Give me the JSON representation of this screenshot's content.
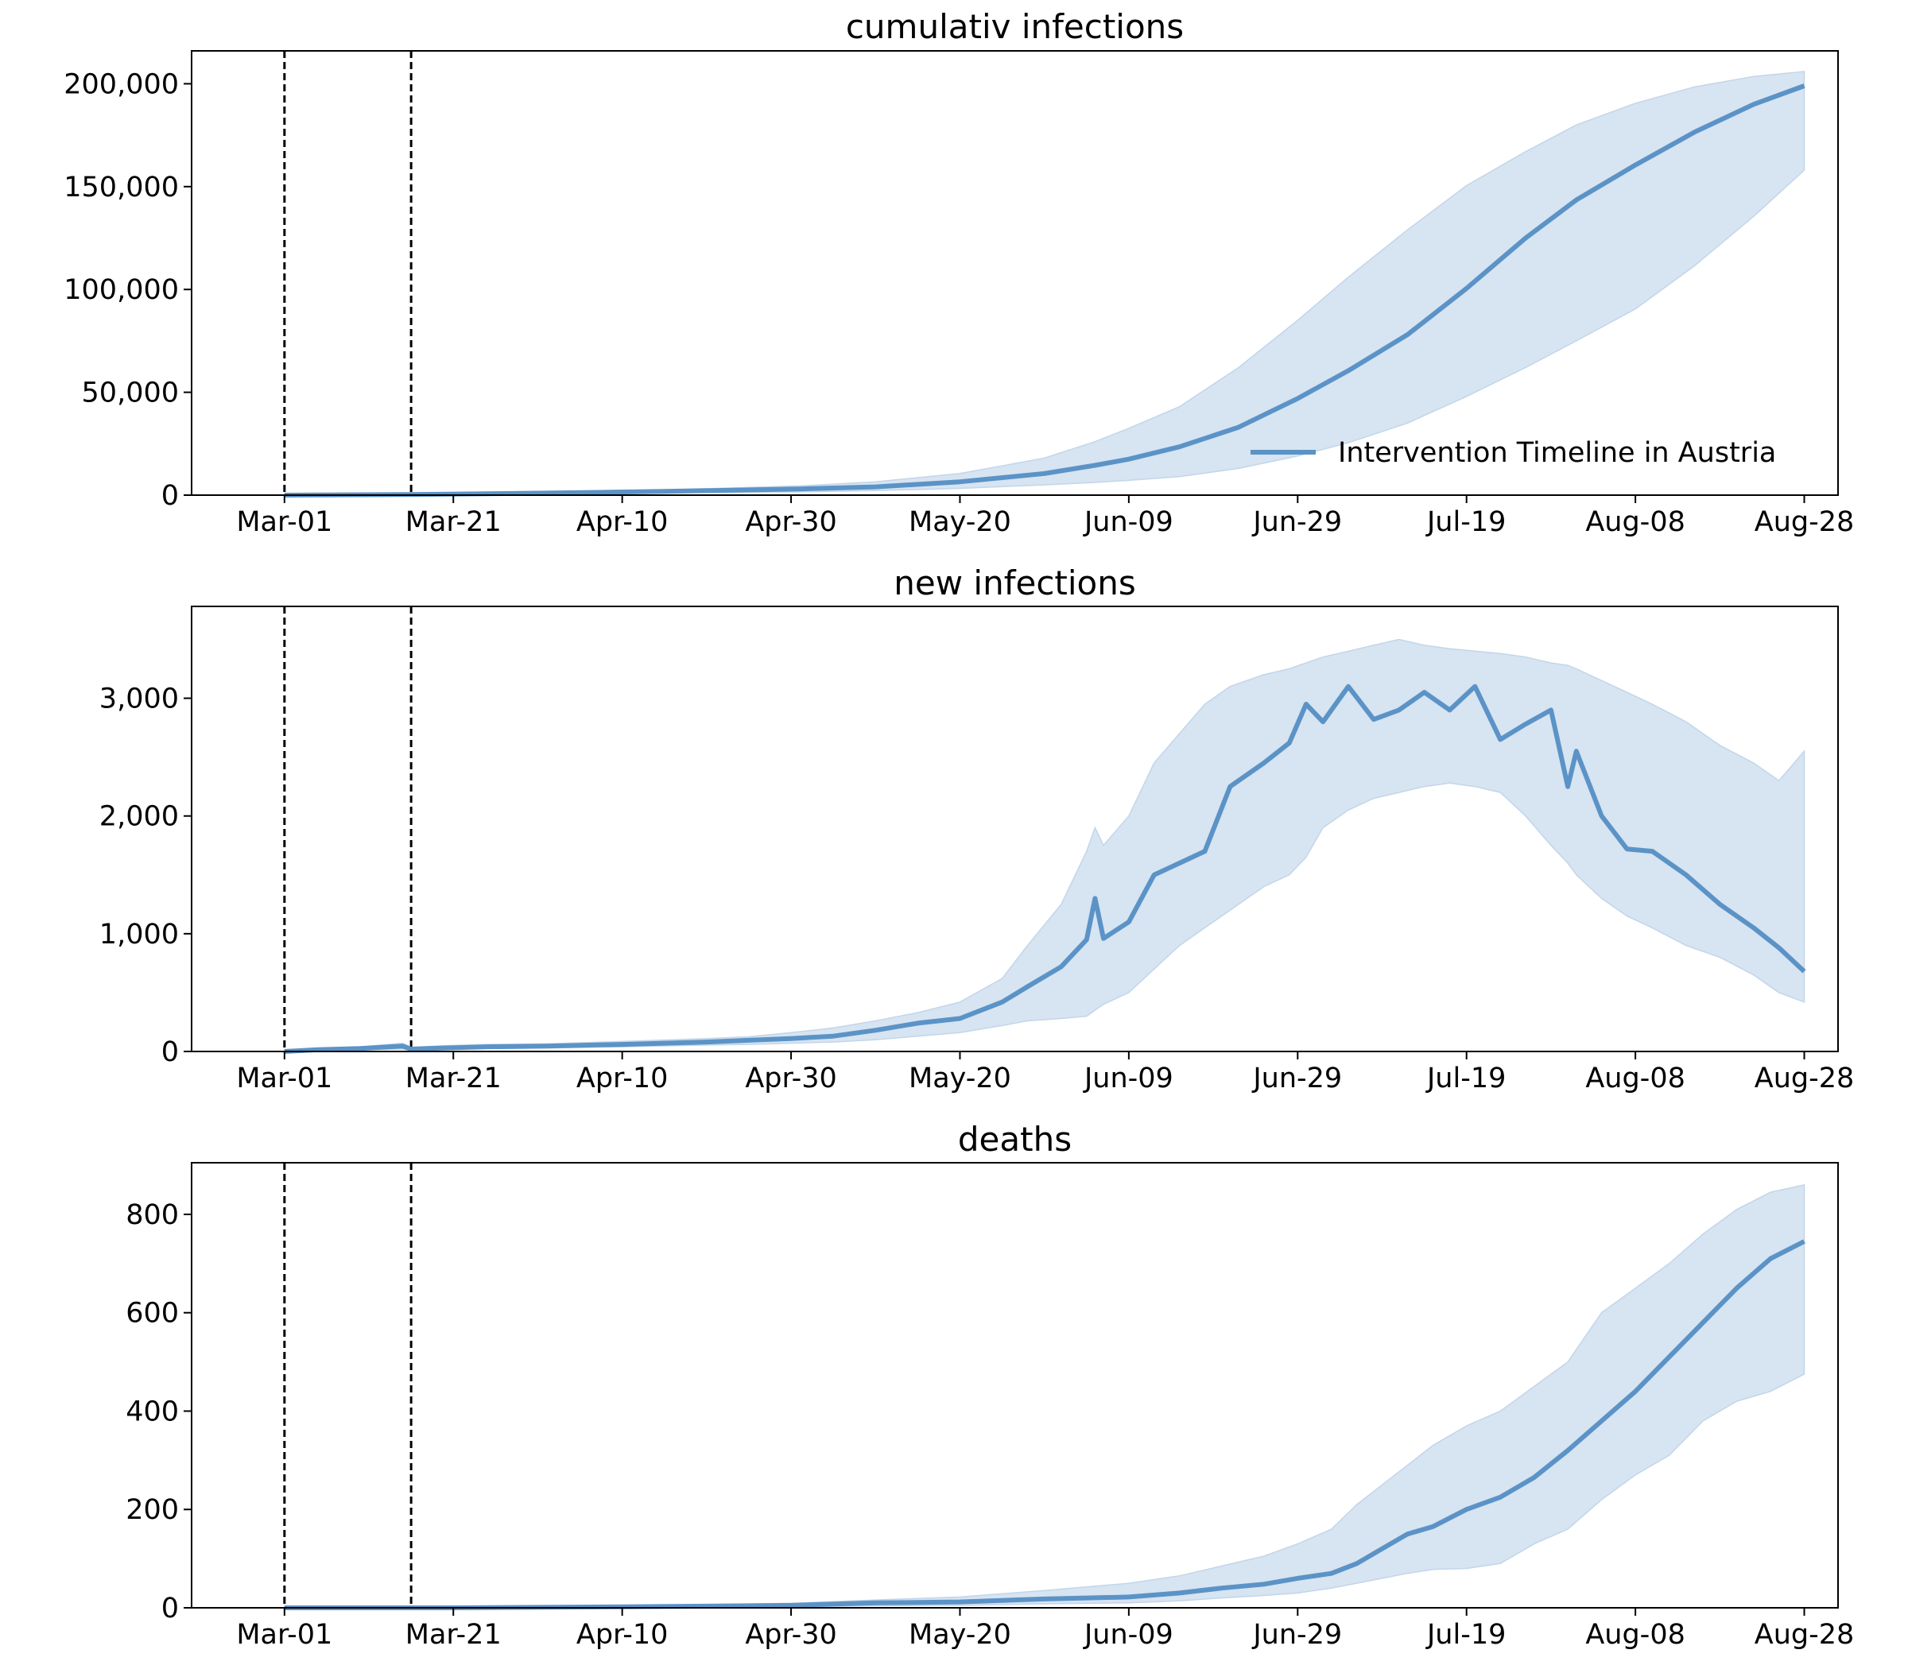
{
  "colors": {
    "line": "#5b93c7",
    "band": "#c2d6ea",
    "intervention": "#000000"
  },
  "chart_data": [
    {
      "type": "line",
      "title": "cumulativ infections",
      "xlabel": "",
      "ylabel": "",
      "xlim": [
        "2020-02-19",
        "2020-09-01"
      ],
      "ylim": [
        0,
        216000
      ],
      "grid": false,
      "y_ticks": [
        0,
        50000,
        100000,
        150000,
        200000
      ],
      "y_tick_labels": [
        "0",
        "50,000",
        "100,000",
        "150,000",
        "200,000"
      ],
      "x_ticks": [
        "2020-03-01",
        "2020-03-21",
        "2020-04-10",
        "2020-04-30",
        "2020-05-20",
        "2020-06-09",
        "2020-06-29",
        "2020-07-19",
        "2020-08-08",
        "2020-08-28"
      ],
      "x_tick_labels": [
        "Mar-01",
        "Mar-21",
        "Apr-10",
        "Apr-30",
        "May-20",
        "Jun-09",
        "Jun-29",
        "Jul-19",
        "Aug-08",
        "Aug-28"
      ],
      "intervention_dates": [
        "2020-03-01",
        "2020-03-16"
      ],
      "legend": {
        "entries": [
          "Intervention Timeline in Austria"
        ],
        "placement": "lower right"
      },
      "series": [
        {
          "name": "Intervention Timeline in Austria",
          "x": [
            "2020-03-01",
            "2020-03-16",
            "2020-04-01",
            "2020-04-15",
            "2020-05-01",
            "2020-05-10",
            "2020-05-20",
            "2020-05-30",
            "2020-06-05",
            "2020-06-09",
            "2020-06-15",
            "2020-06-22",
            "2020-06-29",
            "2020-07-05",
            "2020-07-12",
            "2020-07-19",
            "2020-07-26",
            "2020-08-01",
            "2020-08-08",
            "2020-08-15",
            "2020-08-22",
            "2020-08-28"
          ],
          "y": [
            0,
            300,
            1000,
            1800,
            3000,
            4000,
            6500,
            10500,
            14500,
            17500,
            23500,
            33000,
            47000,
            60500,
            78000,
            100500,
            125000,
            143500,
            160500,
            176500,
            190000,
            199000
          ],
          "lower": [
            0,
            200,
            600,
            1100,
            1600,
            2200,
            3300,
            5000,
            6200,
            7200,
            9000,
            13000,
            19000,
            25500,
            35000,
            48000,
            62000,
            75000,
            90500,
            111500,
            135500,
            158000
          ],
          "upper": [
            0,
            400,
            1400,
            2500,
            4500,
            6500,
            10500,
            18000,
            26000,
            32500,
            43000,
            62000,
            85000,
            106000,
            129000,
            150500,
            167000,
            180000,
            190500,
            198500,
            203500,
            206000
          ]
        }
      ]
    },
    {
      "type": "line",
      "title": "new infections",
      "xlabel": "",
      "ylabel": "",
      "xlim": [
        "2020-02-19",
        "2020-09-01"
      ],
      "ylim": [
        0,
        3780
      ],
      "grid": false,
      "y_ticks": [
        0,
        1000,
        2000,
        3000
      ],
      "y_tick_labels": [
        "0",
        "1,000",
        "2,000",
        "3,000"
      ],
      "x_ticks": [
        "2020-03-01",
        "2020-03-21",
        "2020-04-10",
        "2020-04-30",
        "2020-05-20",
        "2020-06-09",
        "2020-06-29",
        "2020-07-19",
        "2020-08-08",
        "2020-08-28"
      ],
      "x_tick_labels": [
        "Mar-01",
        "Mar-21",
        "Apr-10",
        "Apr-30",
        "May-20",
        "Jun-09",
        "Jun-29",
        "Jul-19",
        "Aug-08",
        "Aug-28"
      ],
      "intervention_dates": [
        "2020-03-01",
        "2020-03-16"
      ],
      "series": [
        {
          "x": [
            "2020-03-01",
            "2020-03-05",
            "2020-03-10",
            "2020-03-15",
            "2020-03-16",
            "2020-03-20",
            "2020-03-25",
            "2020-04-01",
            "2020-04-10",
            "2020-04-20",
            "2020-04-25",
            "2020-04-30",
            "2020-05-05",
            "2020-05-10",
            "2020-05-15",
            "2020-05-20",
            "2020-05-25",
            "2020-05-28",
            "2020-06-01",
            "2020-06-04",
            "2020-06-05",
            "2020-06-06",
            "2020-06-09",
            "2020-06-12",
            "2020-06-15",
            "2020-06-18",
            "2020-06-21",
            "2020-06-25",
            "2020-06-28",
            "2020-06-30",
            "2020-07-02",
            "2020-07-05",
            "2020-07-08",
            "2020-07-11",
            "2020-07-14",
            "2020-07-17",
            "2020-07-20",
            "2020-07-23",
            "2020-07-26",
            "2020-07-29",
            "2020-07-31",
            "2020-08-01",
            "2020-08-04",
            "2020-08-07",
            "2020-08-10",
            "2020-08-14",
            "2020-08-18",
            "2020-08-22",
            "2020-08-25",
            "2020-08-28"
          ],
          "y": [
            0,
            15,
            25,
            45,
            20,
            30,
            40,
            45,
            60,
            80,
            95,
            110,
            130,
            180,
            240,
            280,
            420,
            550,
            720,
            950,
            1300,
            960,
            1100,
            1500,
            1600,
            1700,
            2250,
            2450,
            2620,
            2950,
            2800,
            3100,
            2820,
            2900,
            3050,
            2900,
            3100,
            2650,
            2780,
            2900,
            2250,
            2550,
            2000,
            1720,
            1700,
            1500,
            1250,
            1050,
            880,
            680
          ],
          "lower": [
            0,
            10,
            15,
            20,
            10,
            20,
            25,
            30,
            40,
            55,
            60,
            70,
            80,
            100,
            130,
            160,
            220,
            260,
            280,
            300,
            350,
            400,
            500,
            700,
            900,
            1050,
            1200,
            1400,
            1500,
            1650,
            1900,
            2050,
            2150,
            2200,
            2250,
            2280,
            2250,
            2200,
            2000,
            1750,
            1600,
            1500,
            1300,
            1150,
            1050,
            900,
            800,
            650,
            500,
            420
          ],
          "upper": [
            0,
            25,
            40,
            70,
            35,
            50,
            60,
            65,
            85,
            110,
            125,
            160,
            200,
            260,
            330,
            420,
            620,
            900,
            1250,
            1700,
            1900,
            1750,
            2000,
            2450,
            2700,
            2950,
            3100,
            3200,
            3250,
            3300,
            3350,
            3400,
            3450,
            3500,
            3450,
            3420,
            3400,
            3380,
            3350,
            3300,
            3280,
            3250,
            3150,
            3050,
            2950,
            2800,
            2600,
            2450,
            2300,
            2550
          ]
        }
      ]
    },
    {
      "type": "line",
      "title": "deaths",
      "xlabel": "",
      "ylabel": "",
      "xlim": [
        "2020-02-19",
        "2020-09-01"
      ],
      "ylim": [
        0,
        905
      ],
      "grid": false,
      "y_ticks": [
        0,
        200,
        400,
        600,
        800
      ],
      "y_tick_labels": [
        "0",
        "200",
        "400",
        "600",
        "800"
      ],
      "x_ticks": [
        "2020-03-01",
        "2020-03-21",
        "2020-04-10",
        "2020-04-30",
        "2020-05-20",
        "2020-06-09",
        "2020-06-29",
        "2020-07-19",
        "2020-08-08",
        "2020-08-28"
      ],
      "x_tick_labels": [
        "Mar-01",
        "Mar-21",
        "Apr-10",
        "Apr-30",
        "May-20",
        "Jun-09",
        "Jun-29",
        "Jul-19",
        "Aug-08",
        "Aug-28"
      ],
      "intervention_dates": [
        "2020-03-01",
        "2020-03-16"
      ],
      "series": [
        {
          "x": [
            "2020-03-01",
            "2020-03-21",
            "2020-04-10",
            "2020-04-30",
            "2020-05-10",
            "2020-05-20",
            "2020-05-30",
            "2020-06-09",
            "2020-06-15",
            "2020-06-20",
            "2020-06-25",
            "2020-06-29",
            "2020-07-03",
            "2020-07-06",
            "2020-07-09",
            "2020-07-12",
            "2020-07-15",
            "2020-07-19",
            "2020-07-23",
            "2020-07-27",
            "2020-07-31",
            "2020-08-04",
            "2020-08-08",
            "2020-08-12",
            "2020-08-16",
            "2020-08-20",
            "2020-08-24",
            "2020-08-28"
          ],
          "y": [
            0,
            0,
            2,
            5,
            10,
            12,
            18,
            22,
            30,
            40,
            48,
            60,
            70,
            90,
            120,
            150,
            165,
            200,
            225,
            265,
            320,
            380,
            440,
            510,
            580,
            650,
            710,
            745
          ],
          "lower": [
            0,
            0,
            1,
            2,
            4,
            5,
            8,
            10,
            14,
            20,
            25,
            30,
            40,
            50,
            60,
            70,
            78,
            80,
            90,
            130,
            160,
            220,
            270,
            310,
            380,
            420,
            440,
            475
          ],
          "upper": [
            0,
            1,
            4,
            9,
            16,
            22,
            35,
            50,
            65,
            85,
            105,
            130,
            160,
            210,
            250,
            290,
            330,
            370,
            400,
            450,
            500,
            600,
            650,
            700,
            760,
            810,
            845,
            860
          ]
        }
      ]
    }
  ]
}
